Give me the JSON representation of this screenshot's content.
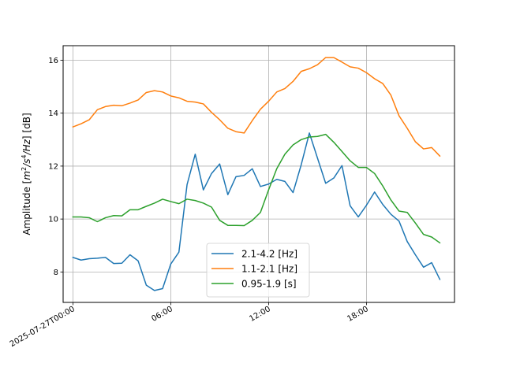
{
  "chart_data": {
    "type": "line",
    "ylabel": "Amplitude [m²/s⁴/Hz] [dB]",
    "ylabel_parts": {
      "prefix": "Amplitude [",
      "m": "m",
      "sq": "2",
      "slash": "/s",
      "four": "4",
      "hz": "/Hz",
      "suffix": "] [dB]"
    },
    "xlim": [
      -0.6,
      23.4
    ],
    "ylim": [
      6.85,
      16.55
    ],
    "grid": true,
    "legend_position": "lower center",
    "xticks": [
      {
        "value": 0,
        "label": "2025-07-27T00:00"
      },
      {
        "value": 6,
        "label": "06:00"
      },
      {
        "value": 12,
        "label": "12:00"
      },
      {
        "value": 18,
        "label": "18:00"
      }
    ],
    "yticks": [
      {
        "value": 8,
        "label": "8"
      },
      {
        "value": 10,
        "label": "10"
      },
      {
        "value": 12,
        "label": "12"
      },
      {
        "value": 14,
        "label": "14"
      },
      {
        "value": 16,
        "label": "16"
      }
    ],
    "x": [
      0,
      0.5,
      1,
      1.5,
      2,
      2.5,
      3,
      3.5,
      4,
      4.5,
      5,
      5.5,
      6,
      6.5,
      7,
      7.5,
      8,
      8.5,
      9,
      9.5,
      10,
      10.5,
      11,
      11.5,
      12,
      12.5,
      13,
      13.5,
      14,
      14.5,
      15,
      15.5,
      16,
      16.5,
      17,
      17.5,
      18,
      18.5,
      19,
      19.5,
      20,
      20.5,
      21,
      21.5,
      22,
      22.5
    ],
    "series": [
      {
        "name": "2.1-4.2 [Hz]",
        "color": "#1f77b4",
        "values": [
          8.55,
          8.45,
          8.5,
          8.52,
          8.55,
          8.32,
          8.33,
          8.65,
          8.42,
          7.5,
          7.3,
          7.37,
          8.3,
          8.75,
          11.3,
          12.45,
          11.1,
          11.72,
          12.08,
          10.92,
          11.6,
          11.65,
          11.9,
          11.23,
          11.32,
          11.5,
          11.42,
          11.0,
          12.05,
          13.25,
          12.3,
          11.35,
          11.55,
          12.02,
          10.5,
          10.08,
          10.52,
          11.02,
          10.55,
          10.18,
          9.92,
          9.15,
          8.65,
          8.18,
          8.35,
          7.72
        ]
      },
      {
        "name": "1.1-2.1 [Hz]",
        "color": "#ff7f0e",
        "values": [
          13.48,
          13.6,
          13.75,
          14.13,
          14.25,
          14.3,
          14.28,
          14.38,
          14.5,
          14.78,
          14.85,
          14.8,
          14.65,
          14.58,
          14.45,
          14.42,
          14.35,
          14.03,
          13.75,
          13.43,
          13.3,
          13.25,
          13.72,
          14.15,
          14.45,
          14.8,
          14.93,
          15.2,
          15.58,
          15.68,
          15.83,
          16.1,
          16.1,
          15.93,
          15.75,
          15.7,
          15.53,
          15.3,
          15.12,
          14.68,
          13.9,
          13.43,
          12.92,
          12.65,
          12.7,
          12.38
        ]
      },
      {
        "name": "0.95-1.9 [s]",
        "color": "#2ca02c",
        "values": [
          10.08,
          10.08,
          10.05,
          9.9,
          10.05,
          10.13,
          10.12,
          10.35,
          10.35,
          10.48,
          10.6,
          10.75,
          10.66,
          10.58,
          10.75,
          10.7,
          10.6,
          10.45,
          9.95,
          9.76,
          9.76,
          9.75,
          9.95,
          10.25,
          11.1,
          11.9,
          12.45,
          12.8,
          13.0,
          13.1,
          13.12,
          13.2,
          12.9,
          12.55,
          12.2,
          11.95,
          11.95,
          11.72,
          11.25,
          10.72,
          10.3,
          10.25,
          9.85,
          9.42,
          9.32,
          9.1
        ]
      }
    ]
  }
}
